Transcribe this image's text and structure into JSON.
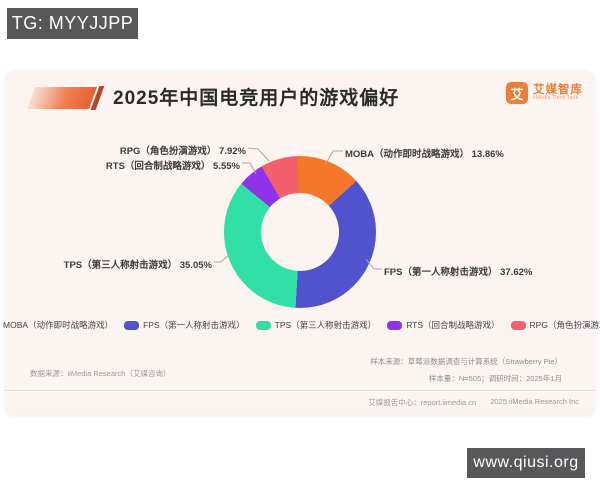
{
  "overlay": {
    "telegram_badge": "TG: MYYJJPP",
    "site_badge": "www.qiusi.org"
  },
  "header": {
    "title": "2025年中国电竞用户的游戏偏好",
    "logo": {
      "icon_char": "艾",
      "brand": "艾媒智库",
      "brand_sub": "iiMedia Think Tank"
    }
  },
  "chart_data": {
    "type": "pie",
    "variant": "donut",
    "title": "2025年中国电竞用户的游戏偏好",
    "unit": "%",
    "start_angle_deg": -2,
    "legend_position": "bottom",
    "series": [
      {
        "name": "MOBA（动作即时战略游戏）",
        "value": 13.86,
        "color": "#F5772A"
      },
      {
        "name": "FPS（第一人称射击游戏）",
        "value": 37.62,
        "color": "#5053CD"
      },
      {
        "name": "TPS（第三人称射击游戏）",
        "value": 35.05,
        "color": "#30DFA5"
      },
      {
        "name": "RTS（回合制战略游戏）",
        "value": 5.55,
        "color": "#8F33EB"
      },
      {
        "name": "RPG（角色扮演游戏）",
        "value": 7.92,
        "color": "#F45F6D"
      }
    ]
  },
  "footer": {
    "data_source": "数据来源：iiMedia Research（艾媒咨询）",
    "sample_source": "样本来源：草莓派数据调查与计算系统（Strawberry Pie）",
    "sample_size": "样本量：N=505；调研时间：2025年1月",
    "report_center": "艾媒报告中心：report.iimedia.cn",
    "copyright": "2025 iiMedia Research Inc"
  }
}
